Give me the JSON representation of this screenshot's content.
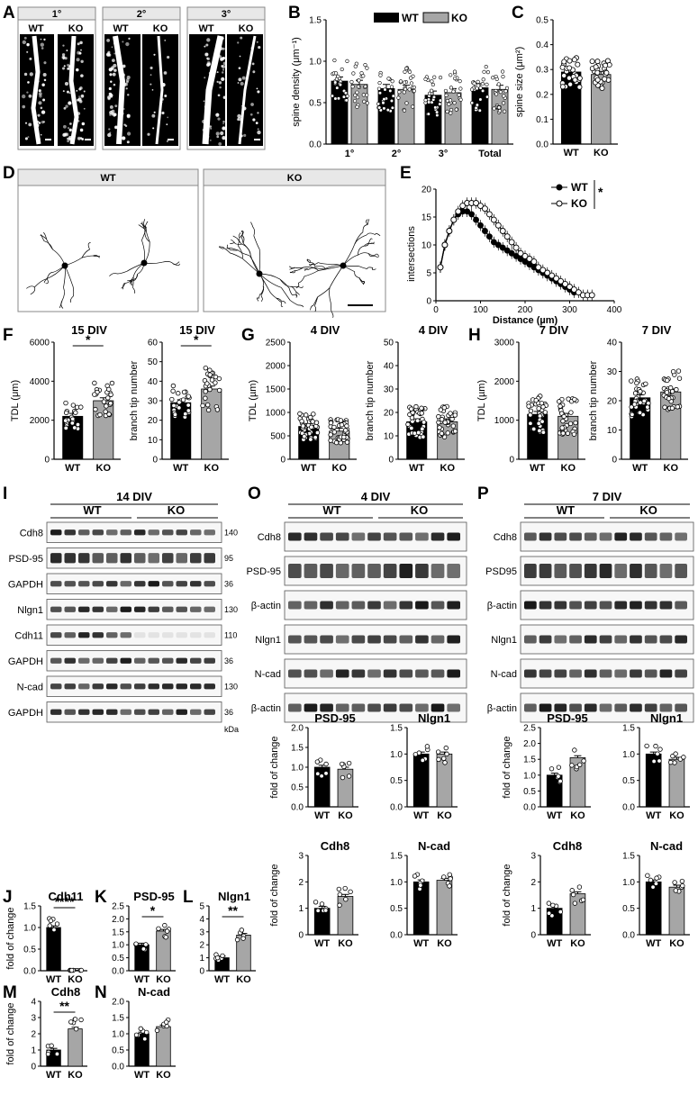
{
  "panels": {
    "A": {
      "letter": "A",
      "groups": [
        "1°",
        "2°",
        "3°"
      ],
      "columns": [
        "WT",
        "KO"
      ]
    },
    "B": {
      "letter": "B",
      "legend": [
        "WT",
        "KO"
      ],
      "ylabel": "spine density (μm⁻¹)",
      "categories": [
        "1°",
        "2°",
        "3°",
        "Total"
      ]
    },
    "C": {
      "letter": "C",
      "ylabel": "spine size (μm²)",
      "categories": [
        "WT",
        "KO"
      ]
    },
    "D": {
      "letter": "D",
      "boxes": [
        "WT",
        "KO"
      ]
    },
    "E": {
      "letter": "E",
      "ylabel": "intersections",
      "xlabel": "Distance (µm)",
      "legend": [
        "WT",
        "KO"
      ],
      "sig": "*"
    },
    "F": {
      "letter": "F",
      "title": "15 DIV"
    },
    "G": {
      "letter": "G",
      "title": "4 DIV"
    },
    "H": {
      "letter": "H",
      "title": "7 DIV"
    },
    "I": {
      "letter": "I",
      "title": "14 DIV",
      "groups": [
        "WT",
        "KO"
      ],
      "rows": [
        "Cdh8",
        "PSD-95",
        "GAPDH",
        "Nlgn1",
        "Cdh11",
        "GAPDH",
        "N-cad",
        "GAPDH"
      ],
      "mw": [
        "140",
        "95",
        "36",
        "130",
        "110",
        "36",
        "130",
        "36"
      ],
      "kda": "kDa"
    },
    "O": {
      "letter": "O",
      "title": "4 DIV",
      "groups": [
        "WT",
        "KO"
      ],
      "rows": [
        "Cdh8",
        "PSD-95",
        "β-actin",
        "Nlgn1",
        "N-cad",
        "β-actin"
      ]
    },
    "P": {
      "letter": "P",
      "title": "7 DIV",
      "groups": [
        "WT",
        "KO"
      ],
      "rows": [
        "Cdh8",
        "PSD95",
        "β-actin",
        "Nlgn1",
        "N-cad",
        "β-actin"
      ]
    },
    "J": {
      "letter": "J",
      "title": "Cdh11",
      "sig": "****"
    },
    "K": {
      "letter": "K",
      "title": "PSD-95",
      "sig": "*"
    },
    "L": {
      "letter": "L",
      "title": "Nlgn1",
      "sig": "**"
    },
    "M": {
      "letter": "M",
      "title": "Cdh8",
      "sig": "**"
    },
    "N": {
      "letter": "N",
      "title": "N-cad"
    }
  },
  "fold_label": "fold of change",
  "colors": {
    "wt": "#000000",
    "ko": "#a6a6a6"
  },
  "chart_data": [
    {
      "panel": "B",
      "type": "bar",
      "categories": [
        "1°",
        "2°",
        "3°",
        "Total"
      ],
      "series": [
        {
          "name": "WT",
          "values": [
            0.76,
            0.67,
            0.59,
            0.68
          ]
        },
        {
          "name": "KO",
          "values": [
            0.72,
            0.66,
            0.62,
            0.66
          ]
        }
      ],
      "ylabel": "spine density (μm⁻¹)",
      "ylim": [
        0,
        1.5
      ],
      "yticks": [
        0.0,
        0.5,
        1.0,
        1.5
      ]
    },
    {
      "panel": "C",
      "type": "bar",
      "categories": [
        "WT",
        "KO"
      ],
      "values": [
        0.29,
        0.28
      ],
      "ylabel": "spine size (μm²)",
      "ylim": [
        0,
        0.5
      ],
      "yticks": [
        0.0,
        0.1,
        0.2,
        0.3,
        0.4,
        0.5
      ]
    },
    {
      "panel": "E",
      "type": "line",
      "xlabel": "Distance (µm)",
      "ylabel": "intersections",
      "xlim": [
        0,
        400
      ],
      "ylim": [
        0,
        20
      ],
      "xticks": [
        0,
        100,
        200,
        300,
        400
      ],
      "yticks": [
        0,
        5,
        10,
        15,
        20
      ],
      "series": [
        {
          "name": "WT",
          "x": [
            10,
            20,
            30,
            40,
            50,
            60,
            70,
            80,
            90,
            100,
            110,
            120,
            130,
            140,
            150,
            160,
            170,
            180,
            190,
            200,
            210,
            220,
            230,
            240,
            250,
            260,
            270,
            280,
            290,
            300,
            310
          ],
          "y": [
            6,
            10,
            12.5,
            14.5,
            15.5,
            16,
            16,
            15.5,
            14.5,
            13.5,
            12.5,
            11.5,
            10.5,
            10,
            9.5,
            9,
            8.5,
            8,
            7.5,
            7,
            6.5,
            6,
            5.5,
            5,
            4.5,
            4,
            3.5,
            3,
            2.5,
            2,
            1.5
          ]
        },
        {
          "name": "KO",
          "x": [
            10,
            20,
            30,
            40,
            50,
            60,
            70,
            80,
            90,
            100,
            110,
            120,
            130,
            140,
            150,
            160,
            170,
            180,
            190,
            200,
            210,
            220,
            230,
            240,
            250,
            260,
            270,
            280,
            290,
            300,
            310,
            320,
            330,
            340,
            350
          ],
          "y": [
            6,
            10,
            12.5,
            14.5,
            16,
            17,
            17.5,
            17.5,
            17.5,
            17,
            16.5,
            15.5,
            14.5,
            13.5,
            12.5,
            11.5,
            10.5,
            9.5,
            8.5,
            8,
            7.5,
            7,
            6,
            5.5,
            5,
            4.5,
            4,
            3.5,
            3,
            2.5,
            2,
            1.5,
            1,
            1,
            1
          ]
        }
      ]
    },
    {
      "panel": "F1",
      "type": "bar",
      "title": "15 DIV",
      "ylabel": "TDL (μm)",
      "categories": [
        "WT",
        "KO"
      ],
      "values": [
        2200,
        3000
      ],
      "ylim": [
        0,
        6000
      ],
      "yticks": [
        0,
        2000,
        4000,
        6000
      ],
      "sig": "*"
    },
    {
      "panel": "F2",
      "type": "bar",
      "title": "15 DIV",
      "ylabel": "branch tip number",
      "categories": [
        "WT",
        "KO"
      ],
      "values": [
        29,
        36
      ],
      "ylim": [
        0,
        60
      ],
      "yticks": [
        0,
        10,
        20,
        30,
        40,
        50,
        60
      ],
      "sig": "*"
    },
    {
      "panel": "G1",
      "type": "bar",
      "title": "4 DIV",
      "ylabel": "TDL (µm)",
      "categories": [
        "WT",
        "KO"
      ],
      "values": [
        700,
        600
      ],
      "ylim": [
        0,
        2500
      ],
      "yticks": [
        0,
        500,
        1000,
        1500,
        2000,
        2500
      ]
    },
    {
      "panel": "G2",
      "type": "bar",
      "title": "4 DIV",
      "ylabel": "branch tip number",
      "categories": [
        "WT",
        "KO"
      ],
      "values": [
        16,
        16
      ],
      "ylim": [
        0,
        50
      ],
      "yticks": [
        0,
        10,
        20,
        30,
        40,
        50
      ]
    },
    {
      "panel": "H1",
      "type": "bar",
      "title": "7 DIV",
      "ylabel": "TDL (µm)",
      "categories": [
        "WT",
        "KO"
      ],
      "values": [
        1150,
        1100
      ],
      "ylim": [
        0,
        3000
      ],
      "yticks": [
        0,
        1000,
        2000,
        3000
      ]
    },
    {
      "panel": "H2",
      "type": "bar",
      "title": "7 DIV",
      "ylabel": "branch tip number",
      "categories": [
        "WT",
        "KO"
      ],
      "values": [
        21,
        23
      ],
      "ylim": [
        0,
        40
      ],
      "yticks": [
        0,
        10,
        20,
        30,
        40
      ]
    },
    {
      "panel": "J",
      "type": "bar",
      "title": "Cdh11",
      "ylabel": "fold of change",
      "categories": [
        "WT",
        "KO"
      ],
      "values": [
        1.0,
        0.01
      ],
      "ylim": [
        0,
        1.5
      ],
      "yticks": [
        0.0,
        0.5,
        1.0,
        1.5
      ],
      "sig": "****"
    },
    {
      "panel": "K",
      "type": "bar",
      "title": "PSD-95",
      "categories": [
        "WT",
        "KO"
      ],
      "values": [
        1.0,
        1.53
      ],
      "ylim": [
        0,
        2.5
      ],
      "yticks": [
        0.0,
        0.5,
        1.0,
        1.5,
        2.0,
        2.5
      ],
      "sig": "*"
    },
    {
      "panel": "L",
      "type": "bar",
      "title": "Nlgn1",
      "categories": [
        "WT",
        "KO"
      ],
      "values": [
        1.0,
        2.75
      ],
      "ylim": [
        0,
        5
      ],
      "yticks": [
        0,
        1,
        2,
        3,
        4,
        5
      ],
      "sig": "**"
    },
    {
      "panel": "M",
      "type": "bar",
      "title": "Cdh8",
      "ylabel": "fold of change",
      "categories": [
        "WT",
        "KO"
      ],
      "values": [
        1.0,
        2.3
      ],
      "ylim": [
        0,
        4
      ],
      "yticks": [
        0,
        1,
        2,
        3,
        4
      ],
      "sig": "**"
    },
    {
      "panel": "N",
      "type": "bar",
      "title": "N-cad",
      "categories": [
        "WT",
        "KO"
      ],
      "values": [
        1.0,
        1.22
      ],
      "ylim": [
        0,
        2.0
      ],
      "yticks": [
        0.0,
        0.5,
        1.0,
        1.5,
        2.0
      ]
    },
    {
      "panel": "O1",
      "type": "bar",
      "title": "PSD-95",
      "ylabel": "fold of change",
      "categories": [
        "WT",
        "KO"
      ],
      "values": [
        1.0,
        0.95
      ],
      "ylim": [
        0,
        2.0
      ],
      "yticks": [
        0.0,
        0.5,
        1.0,
        1.5,
        2.0
      ]
    },
    {
      "panel": "O2",
      "type": "bar",
      "title": "Nlgn1",
      "categories": [
        "WT",
        "KO"
      ],
      "values": [
        1.0,
        1.0
      ],
      "ylim": [
        0,
        1.5
      ],
      "yticks": [
        0.0,
        0.5,
        1.0,
        1.5
      ]
    },
    {
      "panel": "O3",
      "type": "bar",
      "title": "Cdh8",
      "ylabel": "fold of change",
      "categories": [
        "WT",
        "KO"
      ],
      "values": [
        1.0,
        1.45
      ],
      "ylim": [
        0,
        3
      ],
      "yticks": [
        0,
        1,
        2,
        3
      ]
    },
    {
      "panel": "O4",
      "type": "bar",
      "title": "N-cad",
      "categories": [
        "WT",
        "KO"
      ],
      "values": [
        1.0,
        1.03
      ],
      "ylim": [
        0,
        1.5
      ],
      "yticks": [
        0.0,
        0.5,
        1.0,
        1.5
      ]
    },
    {
      "panel": "P1",
      "type": "bar",
      "title": "PSD-95",
      "ylabel": "fold of change",
      "categories": [
        "WT",
        "KO"
      ],
      "values": [
        1.0,
        1.55
      ],
      "ylim": [
        0,
        2.5
      ],
      "yticks": [
        0.0,
        0.5,
        1.0,
        1.5,
        2.0,
        2.5
      ]
    },
    {
      "panel": "P2",
      "type": "bar",
      "title": "Nlgn1",
      "categories": [
        "WT",
        "KO"
      ],
      "values": [
        1.0,
        0.9
      ],
      "ylim": [
        0,
        1.5
      ],
      "yticks": [
        0.0,
        0.5,
        1.0,
        1.5
      ]
    },
    {
      "panel": "P3",
      "type": "bar",
      "title": "Cdh8",
      "ylabel": "fold of change",
      "categories": [
        "WT",
        "KO"
      ],
      "values": [
        1.0,
        1.55
      ],
      "ylim": [
        0,
        3
      ],
      "yticks": [
        0,
        1,
        2,
        3
      ]
    },
    {
      "panel": "P4",
      "type": "bar",
      "title": "N-cad",
      "categories": [
        "WT",
        "KO"
      ],
      "values": [
        1.0,
        0.9
      ],
      "ylim": [
        0,
        1.5
      ],
      "yticks": [
        0.0,
        0.5,
        1.0,
        1.5
      ]
    }
  ]
}
